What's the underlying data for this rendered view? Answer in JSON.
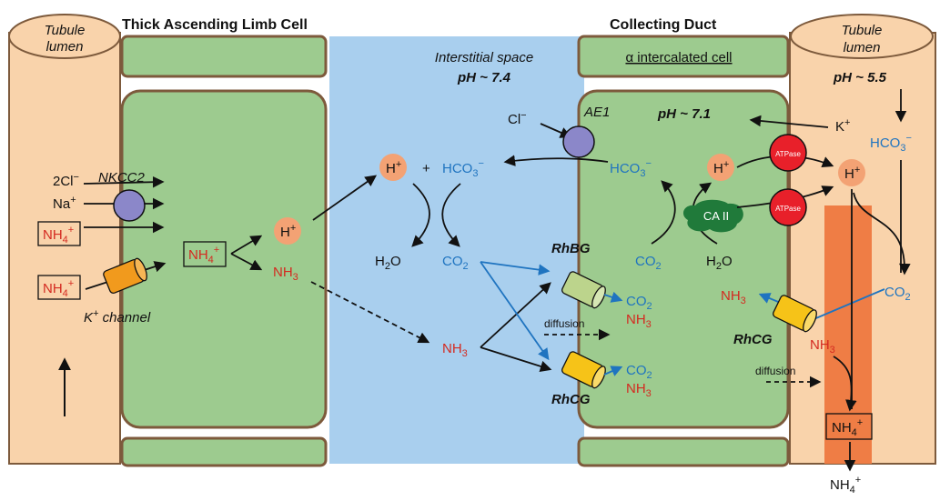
{
  "headings": {
    "thick_ascending_limb": "Thick Ascending Limb Cell",
    "collecting_duct": "Collecting Duct",
    "tubule_lumen_left_1": "Tubule",
    "tubule_lumen_left_2": "lumen",
    "tubule_lumen_right_1": "Tubule",
    "tubule_lumen_right_2": "lumen",
    "interstitial_space": "Interstitial space",
    "ph_interstitial": "pH ~ 7.4",
    "alpha_intercalated": "α intercalated cell",
    "ph_cell": "pH ~ 7.1",
    "ph_lumen": "pH ~ 5.5"
  },
  "tal": {
    "nkcc2": "NKCC2",
    "two_cl": "2Cl",
    "cl_charge": "−",
    "na": "Na",
    "na_charge": "+",
    "nh4_lumen_1": "NH",
    "nh4_lumen_2": "NH",
    "k_channel": "K",
    "k_channel_suffix": " channel",
    "nh4_cell": "NH",
    "h_cell": "H",
    "nh3_cell": "NH",
    "sub4": "4",
    "sub3": "3",
    "plus": "+"
  },
  "interstitium": {
    "h_ion": "H",
    "plus_sign": "+",
    "hco3": "HCO",
    "hco3_charge": "−",
    "h2o": "H",
    "h2o_o": "O",
    "co2": "CO",
    "nh3": "NH",
    "sub2": "2",
    "sub3": "3"
  },
  "collecting_duct": {
    "cl": "Cl",
    "cl_charge": "−",
    "ae1": "AE1",
    "hco3": "HCO",
    "hco3_charge": "−",
    "h_ion": "H",
    "ca_ii": "CA II",
    "co2": "CO",
    "h2o": "H",
    "h2o_o": "O",
    "atpase_top": "ATPase",
    "atpase_bottom": "ATPase",
    "k_ion": "K",
    "h_ion_right": "H",
    "hco3_lumen": "HCO",
    "co2_lumen": "CO",
    "rhbg": "RhBG",
    "rhcg_basal": "RhCG",
    "rhcg_apical": "RhCG",
    "co2_out_rhbg": "CO",
    "nh3_out_rhbg": "NH",
    "co2_out_rhcg": "CO",
    "nh3_out_rhcg": "NH",
    "diffusion_1": "diffusion",
    "diffusion_2": "diffusion",
    "nh3_apical_left": "NH",
    "nh3_apical_right": "NH",
    "nh4_lumen": "NH",
    "nh4_excreted": "NH",
    "sub2": "2",
    "sub3": "3",
    "sub4": "4",
    "plus": "+"
  },
  "colors": {
    "tubule": "#f9d3ab",
    "cell": "#9dcb8f",
    "interstitium": "#a9cfee",
    "membrane": "#7d5a3c",
    "nkcc2": "#8b87c9",
    "ae1": "#8b87c9",
    "k_channel": "#f19a1d",
    "atpase": "#e8202a",
    "rhbg": "#bcd48c",
    "rhcg": "#f6c318",
    "ca_ii": "#207a3a",
    "collecting_lumen_band": "#ef7d45",
    "ion_orb": "#f3a274",
    "nh3_red": "#d42a20",
    "co2_blue": "#1f74c0"
  }
}
